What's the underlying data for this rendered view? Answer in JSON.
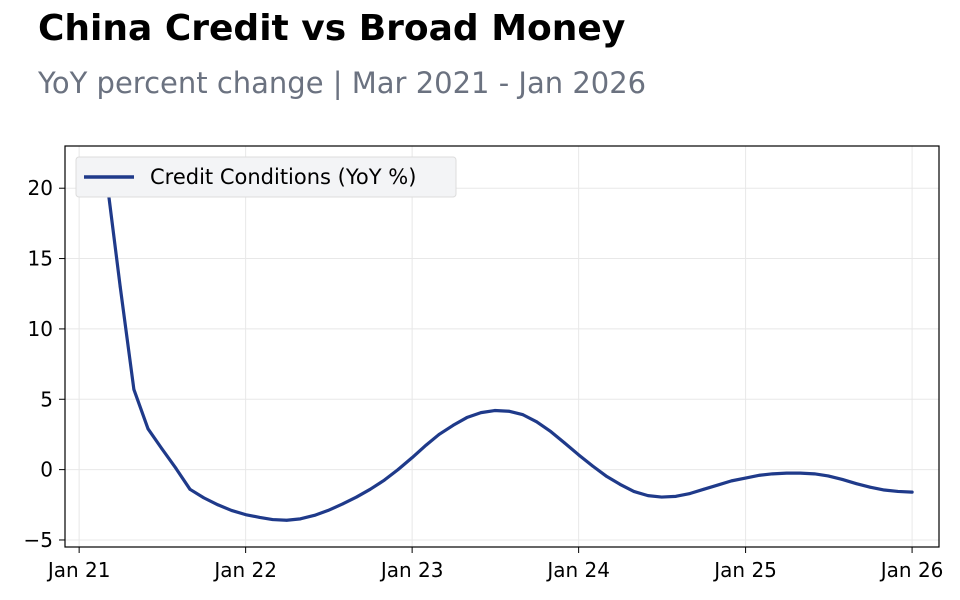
{
  "header": {
    "title": "China Credit vs Broad Money",
    "subtitle": "YoY percent change | Mar 2021 - Jan 2026"
  },
  "colors": {
    "series": "#1f3a8a",
    "grid": "#e8e8e8",
    "subtitle": "#6b7280",
    "legend_bg": "#f3f4f6"
  },
  "chart_data": {
    "type": "line",
    "title": "China Credit vs Broad Money",
    "subtitle": "YoY percent change | Mar 2021 - Jan 2026",
    "xlabel": "",
    "ylabel": "",
    "xlim": [
      "2020-12-01",
      "2026-03-01"
    ],
    "ylim": [
      -5.5,
      23
    ],
    "x_ticks": [
      {
        "date": "2021-01-01",
        "label": "Jan 21"
      },
      {
        "date": "2022-01-01",
        "label": "Jan 22"
      },
      {
        "date": "2023-01-01",
        "label": "Jan 23"
      },
      {
        "date": "2024-01-01",
        "label": "Jan 24"
      },
      {
        "date": "2025-01-01",
        "label": "Jan 25"
      },
      {
        "date": "2026-01-01",
        "label": "Jan 26"
      }
    ],
    "y_ticks": [
      20,
      15,
      10,
      5,
      0,
      -5
    ],
    "grid": true,
    "legend": {
      "position": "top-left"
    },
    "series": [
      {
        "name": "Credit Conditions (YoY %)",
        "x": [
          "2021-03",
          "2021-04",
          "2021-05",
          "2021-06",
          "2021-07",
          "2021-08",
          "2021-09",
          "2021-10",
          "2021-11",
          "2021-12",
          "2022-01",
          "2022-02",
          "2022-03",
          "2022-04",
          "2022-05",
          "2022-06",
          "2022-07",
          "2022-08",
          "2022-09",
          "2022-10",
          "2022-11",
          "2022-12",
          "2023-01",
          "2023-02",
          "2023-03",
          "2023-04",
          "2023-05",
          "2023-06",
          "2023-07",
          "2023-08",
          "2023-09",
          "2023-10",
          "2023-11",
          "2023-12",
          "2024-01",
          "2024-02",
          "2024-03",
          "2024-04",
          "2024-05",
          "2024-06",
          "2024-07",
          "2024-08",
          "2024-09",
          "2024-10",
          "2024-11",
          "2024-12",
          "2025-01",
          "2025-02",
          "2025-03",
          "2025-04",
          "2025-05",
          "2025-06",
          "2025-07",
          "2025-08",
          "2025-09",
          "2025-10",
          "2025-11",
          "2025-12",
          "2026-01"
        ],
        "y": [
          21.0,
          13.0,
          5.7,
          2.9,
          1.5,
          0.1,
          -1.4,
          -2.0,
          -2.5,
          -2.9,
          -3.2,
          -3.4,
          -3.55,
          -3.6,
          -3.5,
          -3.25,
          -2.9,
          -2.45,
          -1.95,
          -1.4,
          -0.75,
          0.0,
          0.85,
          1.75,
          2.5,
          3.15,
          3.7,
          4.05,
          4.2,
          4.15,
          3.9,
          3.4,
          2.7,
          1.9,
          1.05,
          0.25,
          -0.45,
          -1.05,
          -1.55,
          -1.85,
          -1.95,
          -1.9,
          -1.7,
          -1.4,
          -1.1,
          -0.8,
          -0.6,
          -0.4,
          -0.3,
          -0.25,
          -0.25,
          -0.3,
          -0.45,
          -0.7,
          -1.0,
          -1.25,
          -1.45,
          -1.55,
          -1.6
        ]
      }
    ]
  }
}
